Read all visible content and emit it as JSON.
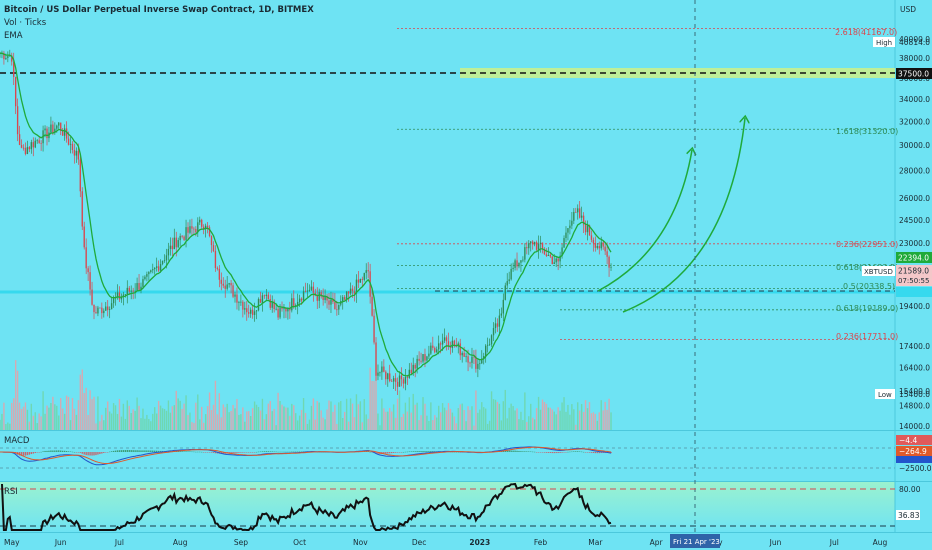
{
  "header": {
    "title": "Bitcoin / US Dollar Perpetual Inverse Swap Contract, 1D, BITMEX",
    "indicator1": "Vol · Ticks",
    "indicator2": "EMA"
  },
  "axis": {
    "currency": "USD",
    "price_ticks": [
      "40000.0",
      "38000.0",
      "36000.0",
      "34000.0",
      "32000.0",
      "30000.0",
      "28000.0",
      "26000.0",
      "24500.0",
      "23000.0",
      "21500.0",
      "19400.0",
      "17400.0",
      "16400.0",
      "15400.0",
      "14800.0",
      "14000.0"
    ],
    "months": [
      "May",
      "Jun",
      "Jul",
      "Aug",
      "Sep",
      "Oct",
      "Nov",
      "Dec",
      "2023",
      "Feb",
      "Mar",
      "Apr",
      "May",
      "Jun",
      "Jul",
      "Aug"
    ],
    "cursor_date": "Fri 21 Apr '23"
  },
  "price_tags": {
    "high_label": "High",
    "high_value": "40814.0",
    "level_37500": "37500.0",
    "ema_value": "22394.0",
    "symbol": "XBTUSD",
    "last_price": "21589.0",
    "countdown": "07:50:55",
    "low_label": "Low",
    "low_value": "15400.0"
  },
  "fib": {
    "f2618_upper": "2.618(41167.0)",
    "f1618": "1.618(31320.0)",
    "f0236_upper": "0.236(22951.0)",
    "f0618_mid": "0.618(21633.5)",
    "f05": "0.5(20338.5)",
    "f0618_low": "0.618(19189.0)",
    "f0236_low": "0.236(17711.0)"
  },
  "macd": {
    "label": "MACD",
    "v1": "−4.4",
    "v2": "−264.9",
    "v3": "−2500.0"
  },
  "rsi": {
    "label": "RSI",
    "upper": "80.00",
    "value": "36.83"
  },
  "colors": {
    "background": "#6ee3f3",
    "candle_up": "#2e8b57",
    "candle_down": "#d9474e",
    "ema": "#1faa3a",
    "fib_red": "#d9474e",
    "fib_green": "#2e8b57",
    "level_highlight": "#c6f08f",
    "arrow": "#1faa3a",
    "rsi_band": "#8df0c4"
  },
  "chart_data": {
    "type": "candlestick",
    "title": "Bitcoin / US Dollar Perpetual Inverse Swap Contract, 1D, BITMEX",
    "x_range": [
      "2022-05-01",
      "2023-08-01"
    ],
    "y_range": [
      14000,
      41000
    ],
    "y_scale": "log",
    "anchor_prices": [
      {
        "date": "2022-05-01",
        "close": 38500
      },
      {
        "date": "2022-05-07",
        "close": 38200
      },
      {
        "date": "2022-05-10",
        "close": 31000
      },
      {
        "date": "2022-05-12",
        "close": 29500
      },
      {
        "date": "2022-05-31",
        "close": 31700
      },
      {
        "date": "2022-06-10",
        "close": 29000
      },
      {
        "date": "2022-06-13",
        "close": 22400
      },
      {
        "date": "2022-06-18",
        "close": 19000
      },
      {
        "date": "2022-06-30",
        "close": 19800
      },
      {
        "date": "2022-07-15",
        "close": 20800
      },
      {
        "date": "2022-07-31",
        "close": 23300
      },
      {
        "date": "2022-08-14",
        "close": 24400
      },
      {
        "date": "2022-08-20",
        "close": 21200
      },
      {
        "date": "2022-09-06",
        "close": 19000
      },
      {
        "date": "2022-09-13",
        "close": 20200
      },
      {
        "date": "2022-09-20",
        "close": 18900
      },
      {
        "date": "2022-10-05",
        "close": 20300
      },
      {
        "date": "2022-10-20",
        "close": 19200
      },
      {
        "date": "2022-11-05",
        "close": 21300
      },
      {
        "date": "2022-11-09",
        "close": 16300
      },
      {
        "date": "2022-11-21",
        "close": 15800
      },
      {
        "date": "2022-12-05",
        "close": 17000
      },
      {
        "date": "2022-12-14",
        "close": 17800
      },
      {
        "date": "2022-12-31",
        "close": 16550
      },
      {
        "date": "2023-01-12",
        "close": 18800
      },
      {
        "date": "2023-01-14",
        "close": 20800
      },
      {
        "date": "2023-01-28",
        "close": 23100
      },
      {
        "date": "2023-02-10",
        "close": 21700
      },
      {
        "date": "2023-02-15",
        "close": 24300
      },
      {
        "date": "2023-02-20",
        "close": 24900
      },
      {
        "date": "2023-02-28",
        "close": 23200
      },
      {
        "date": "2023-03-06",
        "close": 22400
      },
      {
        "date": "2023-03-09",
        "close": 21589
      }
    ],
    "fib_levels": [
      {
        "label": "2.618",
        "price": 41167.0,
        "color": "red"
      },
      {
        "label": "1.618",
        "price": 31320.0,
        "color": "green"
      },
      {
        "label": "0.236",
        "price": 22951.0,
        "color": "red"
      },
      {
        "label": "0.618",
        "price": 21633.5,
        "color": "green"
      },
      {
        "label": "0.5",
        "price": 20338.5,
        "color": "green"
      },
      {
        "label": "0.618",
        "price": 19189.0,
        "color": "green"
      },
      {
        "label": "0.236",
        "price": 17711.0,
        "color": "red"
      }
    ],
    "horizontal_levels": [
      37500.0
    ],
    "rsi_last": 36.83,
    "macd_last": [
      -4.4,
      -264.9
    ],
    "legend": "none"
  }
}
